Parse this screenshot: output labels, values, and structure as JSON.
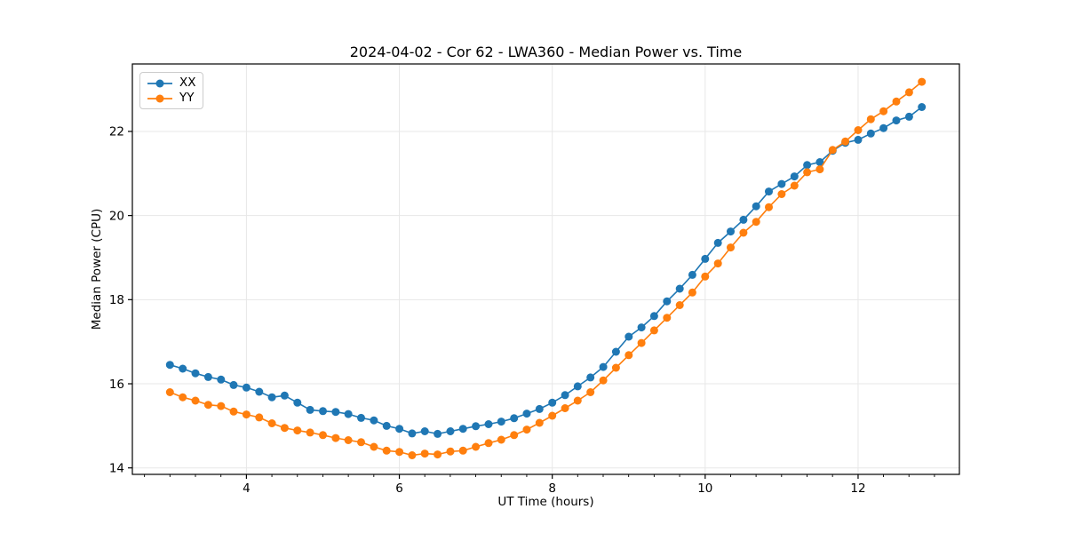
{
  "figure": {
    "background": "#ffffff"
  },
  "chart_data": {
    "type": "line",
    "title": "2024-04-02 - Cor 62 - LWA360 - Median Power vs. Time",
    "xlabel": "UT Time (hours)",
    "ylabel": "Median Power (CPU)",
    "x": [
      3.0,
      3.167,
      3.333,
      3.5,
      3.667,
      3.833,
      4.0,
      4.167,
      4.333,
      4.5,
      4.667,
      4.833,
      5.0,
      5.167,
      5.333,
      5.5,
      5.667,
      5.833,
      6.0,
      6.167,
      6.333,
      6.5,
      6.667,
      6.833,
      7.0,
      7.167,
      7.333,
      7.5,
      7.667,
      7.833,
      8.0,
      8.167,
      8.333,
      8.5,
      8.667,
      8.833,
      9.0,
      9.167,
      9.333,
      9.5,
      9.667,
      9.833,
      10.0,
      10.167,
      10.333,
      10.5,
      10.667,
      10.833,
      11.0,
      11.167,
      11.333,
      11.5,
      11.667,
      11.833,
      12.0,
      12.167,
      12.333,
      12.5,
      12.667,
      12.833
    ],
    "series": [
      {
        "name": "XX",
        "color": "#1f77b4",
        "values": [
          16.45,
          16.36,
          16.25,
          16.16,
          16.1,
          15.97,
          15.91,
          15.81,
          15.68,
          15.72,
          15.55,
          15.38,
          15.35,
          15.33,
          15.28,
          15.19,
          15.13,
          15.0,
          14.93,
          14.82,
          14.87,
          14.81,
          14.87,
          14.93,
          14.99,
          15.04,
          15.1,
          15.18,
          15.29,
          15.4,
          15.55,
          15.73,
          15.94,
          16.15,
          16.4,
          16.76,
          17.12,
          17.34,
          17.61,
          17.96,
          18.26,
          18.59,
          18.97,
          19.35,
          19.62,
          19.9,
          20.22,
          20.57,
          20.75,
          20.93,
          21.2,
          21.27,
          21.54,
          21.73,
          21.8,
          21.95,
          22.08,
          22.26,
          22.35,
          22.58
        ]
      },
      {
        "name": "YY",
        "color": "#ff7f0e",
        "values": [
          15.8,
          15.68,
          15.6,
          15.5,
          15.47,
          15.34,
          15.27,
          15.2,
          15.06,
          14.95,
          14.89,
          14.84,
          14.78,
          14.71,
          14.66,
          14.61,
          14.5,
          14.41,
          14.38,
          14.3,
          14.34,
          14.32,
          14.39,
          14.41,
          14.5,
          14.59,
          14.67,
          14.78,
          14.91,
          15.07,
          15.24,
          15.42,
          15.6,
          15.8,
          16.08,
          16.38,
          16.68,
          16.97,
          17.27,
          17.57,
          17.87,
          18.17,
          18.55,
          18.86,
          19.24,
          19.59,
          19.85,
          20.2,
          20.51,
          20.71,
          21.03,
          21.1,
          21.56,
          21.76,
          22.03,
          22.29,
          22.48,
          22.71,
          22.93,
          23.18
        ]
      }
    ],
    "xlim": [
      2.508,
      13.325
    ],
    "ylim": [
      13.846,
      23.604
    ],
    "xticks": [
      4,
      6,
      8,
      10,
      12
    ],
    "yticks": [
      14,
      16,
      18,
      20,
      22
    ],
    "minor_xtick_step": 0.3333,
    "grid": true,
    "legend_position": "upper left",
    "marker": "o",
    "marker_radius": 4.5,
    "line_width": 1.6,
    "axis_color": "#000000",
    "grid_color": "#e7e7e7",
    "text_color": "#000000"
  }
}
